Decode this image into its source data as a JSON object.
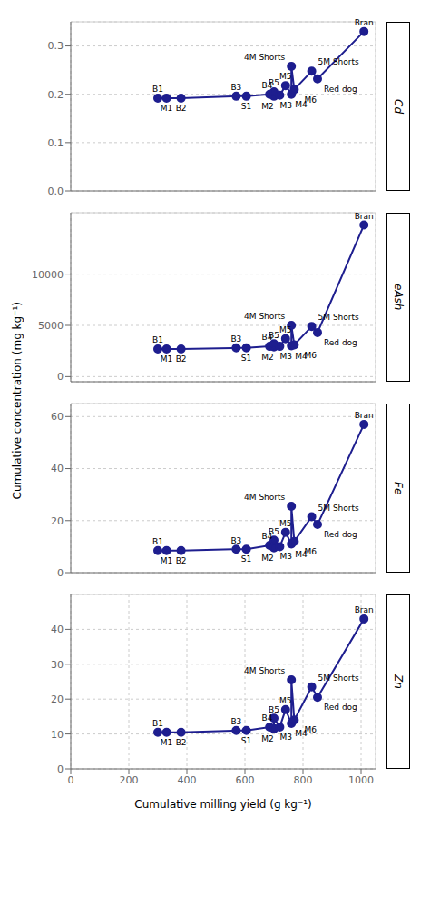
{
  "chart_data": [
    {
      "type": "line",
      "title": "Cd",
      "ylabel": "Cumulative concentration (mg kg⁻¹)",
      "xlim": [
        0,
        1050
      ],
      "xticks": [
        0,
        200,
        400,
        600,
        800,
        1000
      ],
      "ylim": [
        0.0,
        0.35
      ],
      "yticks": [
        {
          "value": 0.0,
          "label": "0.0"
        },
        0.1,
        0.2,
        0.3
      ],
      "grid": true,
      "tick_labels": "y",
      "marker": "circle",
      "color": "#1e1e8f",
      "x": [
        300,
        330,
        380,
        570,
        605,
        685,
        700,
        700,
        720,
        740,
        760,
        760,
        770,
        830,
        850,
        1010
      ],
      "values": [
        0.192,
        0.192,
        0.192,
        0.196,
        0.196,
        0.2,
        0.196,
        0.205,
        0.198,
        0.218,
        0.2,
        0.258,
        0.21,
        0.248,
        0.232,
        0.33
      ],
      "annotations": [
        "B1",
        "M1",
        "B2",
        "B3",
        "S1",
        "B4",
        "M2",
        "B5",
        "M3",
        "M5",
        "M4",
        "4M Shorts",
        "M6",
        "5M Shorts",
        "Red dog",
        "Bran"
      ]
    },
    {
      "type": "line",
      "title": "eAsh",
      "xlim": [
        0,
        1050
      ],
      "xticks": [
        0,
        200,
        400,
        600,
        800,
        1000
      ],
      "ylim": [
        -500,
        16000
      ],
      "yticks": [
        0,
        5000,
        10000
      ],
      "grid": true,
      "tick_labels": "y",
      "marker": "circle",
      "color": "#1e1e8f",
      "x": [
        300,
        330,
        380,
        570,
        605,
        685,
        700,
        700,
        720,
        740,
        760,
        760,
        770,
        830,
        850,
        1010
      ],
      "values": [
        2700,
        2700,
        2700,
        2800,
        2800,
        2950,
        2900,
        3200,
        2950,
        3700,
        3000,
        5000,
        3100,
        4900,
        4300,
        14800
      ],
      "annotations": [
        "B1",
        "M1",
        "B2",
        "B3",
        "S1",
        "B4",
        "M2",
        "B5",
        "M3",
        "M5",
        "M4",
        "4M Shorts",
        "M6",
        "5M Shorts",
        "Red dog",
        "Bran"
      ]
    },
    {
      "type": "line",
      "title": "Fe",
      "xlim": [
        0,
        1050
      ],
      "xticks": [
        0,
        200,
        400,
        600,
        800,
        1000
      ],
      "ylim": [
        0,
        65
      ],
      "yticks": [
        0,
        20,
        40,
        60
      ],
      "grid": true,
      "tick_labels": "y",
      "marker": "circle",
      "color": "#1e1e8f",
      "x": [
        300,
        330,
        380,
        570,
        605,
        685,
        700,
        700,
        720,
        740,
        760,
        760,
        770,
        830,
        850,
        1010
      ],
      "values": [
        8.5,
        8.5,
        8.5,
        9.0,
        9.0,
        10.5,
        9.5,
        12.5,
        10.0,
        15.5,
        11.0,
        25.5,
        12.0,
        21.5,
        18.5,
        57.0
      ],
      "annotations": [
        "B1",
        "M1",
        "B2",
        "B3",
        "S1",
        "B4",
        "M2",
        "B5",
        "M3",
        "M5",
        "M4",
        "4M Shorts",
        "M6",
        "5M Shorts",
        "Red dog",
        "Bran"
      ]
    },
    {
      "type": "line",
      "title": "Zn",
      "xlabel": "Cumulative milling yield (g kg⁻¹)",
      "xlim": [
        0,
        1050
      ],
      "xticks": [
        0,
        200,
        400,
        600,
        800,
        1000
      ],
      "ylim": [
        0,
        50
      ],
      "yticks": [
        0,
        10,
        20,
        30,
        40
      ],
      "grid": true,
      "marker": "circle",
      "color": "#1e1e8f",
      "x": [
        300,
        330,
        380,
        570,
        605,
        685,
        700,
        700,
        720,
        740,
        760,
        760,
        770,
        830,
        850,
        1010
      ],
      "values": [
        10.5,
        10.5,
        10.5,
        11.0,
        11.0,
        12.0,
        11.5,
        14.5,
        12.0,
        17.0,
        13.0,
        25.5,
        14.0,
        23.5,
        20.5,
        43.0
      ],
      "annotations": [
        "B1",
        "M1",
        "B2",
        "B3",
        "S1",
        "B4",
        "M2",
        "B5",
        "M3",
        "M5",
        "M4",
        "4M Shorts",
        "M6",
        "5M Shorts",
        "Red dog",
        "Bran"
      ]
    }
  ]
}
